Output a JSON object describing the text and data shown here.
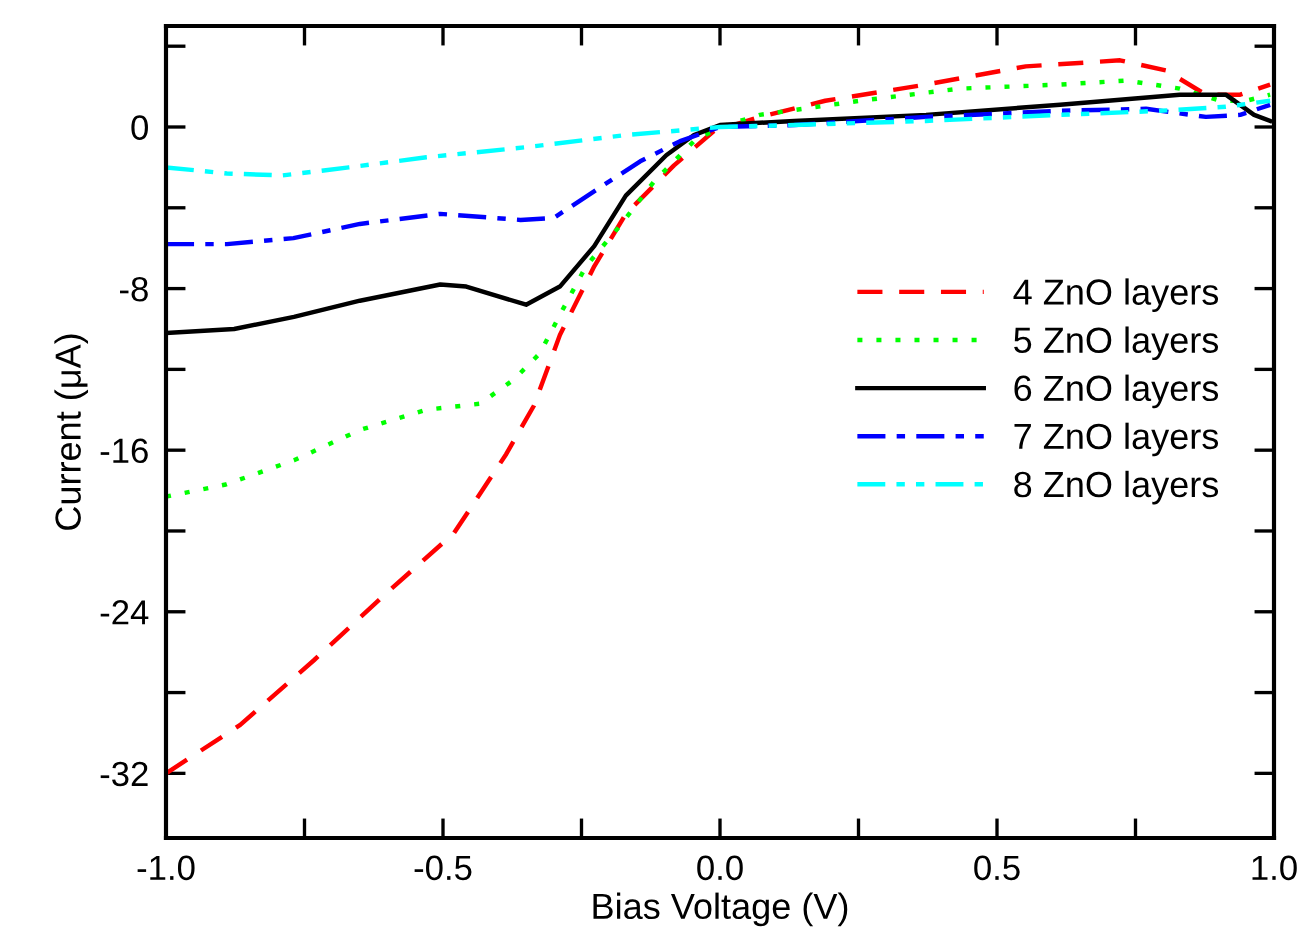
{
  "chart_data": {
    "type": "line",
    "xlabel": "Bias Voltage (V)",
    "ylabel": "Current (μA)",
    "xlim": [
      -1.0,
      1.0
    ],
    "ylim": [
      -35.2,
      5
    ],
    "xticks": [
      {
        "value": -1.0,
        "label": "-1.0"
      },
      {
        "value": -0.75,
        "label": null
      },
      {
        "value": -0.5,
        "label": "-0.5"
      },
      {
        "value": -0.25,
        "label": null
      },
      {
        "value": 0.0,
        "label": "0.0"
      },
      {
        "value": 0.25,
        "label": null
      },
      {
        "value": 0.5,
        "label": "0.5"
      },
      {
        "value": 0.75,
        "label": null
      },
      {
        "value": 1.0,
        "label": "1.0"
      }
    ],
    "yticks": [
      {
        "value": -32,
        "label": "-32"
      },
      {
        "value": -28,
        "label": null
      },
      {
        "value": -24,
        "label": "-24"
      },
      {
        "value": -20,
        "label": null
      },
      {
        "value": -16,
        "label": "-16"
      },
      {
        "value": -12,
        "label": null
      },
      {
        "value": -8,
        "label": "-8"
      },
      {
        "value": -4,
        "label": null
      },
      {
        "value": 0,
        "label": "0"
      },
      {
        "value": 4,
        "label": null
      }
    ],
    "grid": false,
    "legend": "center right",
    "marker": "none",
    "series": [
      {
        "name": "4 ZnO layers",
        "color": "#ff0000",
        "line_style": "dashed",
        "x": [
          -1,
          -0.866,
          -0.733,
          -0.603,
          -0.48,
          -0.386,
          -0.336,
          -0.289,
          -0.227,
          -0.17,
          -0.083,
          -0.011,
          0.072,
          0.19,
          0.372,
          0.552,
          0.722,
          0.805,
          0.877,
          0.939,
          0.993
        ],
        "values": [
          -32,
          -29.6,
          -26.4,
          -23.1,
          -20.1,
          -16.2,
          -13.8,
          -10.3,
          -6.9,
          -4.3,
          -1.9,
          -0.2,
          0.5,
          1.3,
          2.1,
          3.0,
          3.3,
          2.8,
          1.6,
          1.6,
          2.1
        ]
      },
      {
        "name": "5 ZnO layers",
        "color": "#00ff00",
        "line_style": "dotted",
        "x": [
          -1,
          -0.892,
          -0.769,
          -0.65,
          -0.531,
          -0.433,
          -0.372,
          -0.325,
          -0.289,
          -0.242,
          -0.181,
          -0.119,
          -0.047,
          0,
          0.072,
          0.253,
          0.433,
          0.614,
          0.733,
          0.83,
          0.903,
          0.95,
          0.993
        ],
        "values": [
          -18.3,
          -17.7,
          -16.5,
          -15.0,
          -14.0,
          -13.7,
          -12.5,
          -11.2,
          -9.3,
          -6.9,
          -4.9,
          -2.7,
          -0.7,
          0,
          0.6,
          1.3,
          1.9,
          2.1,
          2.3,
          1.9,
          1.3,
          1.3,
          1.6
        ]
      },
      {
        "name": "6 ZnO layers",
        "color": "#000000",
        "line_style": "solid",
        "x": [
          -1,
          -0.877,
          -0.769,
          -0.65,
          -0.505,
          -0.458,
          -0.35,
          -0.289,
          -0.227,
          -0.17,
          -0.097,
          -0.047,
          0,
          0.134,
          0.372,
          0.614,
          0.83,
          0.913,
          0.964,
          0.993
        ],
        "values": [
          -10.2,
          -10.0,
          -9.4,
          -8.6,
          -7.8,
          -7.9,
          -8.8,
          -7.9,
          -5.9,
          -3.4,
          -1.4,
          -0.4,
          0.1,
          0.3,
          0.6,
          1.1,
          1.6,
          1.6,
          0.6,
          0.3
        ]
      },
      {
        "name": "7 ZnO layers",
        "color": "#0000ff",
        "line_style": "dashdot",
        "x": [
          -1,
          -0.89,
          -0.77,
          -0.65,
          -0.505,
          -0.36,
          -0.3,
          -0.217,
          -0.144,
          -0.072,
          0,
          0.134,
          0.372,
          0.614,
          0.769,
          0.877,
          0.939,
          0.993
        ],
        "values": [
          -5.8,
          -5.8,
          -5.5,
          -4.8,
          -4.3,
          -4.6,
          -4.5,
          -3.0,
          -1.7,
          -0.7,
          0,
          0.1,
          0.5,
          0.8,
          0.9,
          0.5,
          0.6,
          1.1
        ]
      },
      {
        "name": "8 ZnO layers",
        "color": "#00ffff",
        "line_style": "dashdotdot",
        "x": [
          -1,
          -0.89,
          -0.79,
          -0.67,
          -0.53,
          -0.35,
          -0.17,
          0,
          0.134,
          0.372,
          0.614,
          0.794,
          0.913,
          0.993
        ],
        "values": [
          -2.0,
          -2.3,
          -2.4,
          -2.0,
          -1.5,
          -1.0,
          -0.4,
          0,
          0.1,
          0.3,
          0.6,
          0.8,
          1.0,
          1.3
        ]
      }
    ]
  }
}
